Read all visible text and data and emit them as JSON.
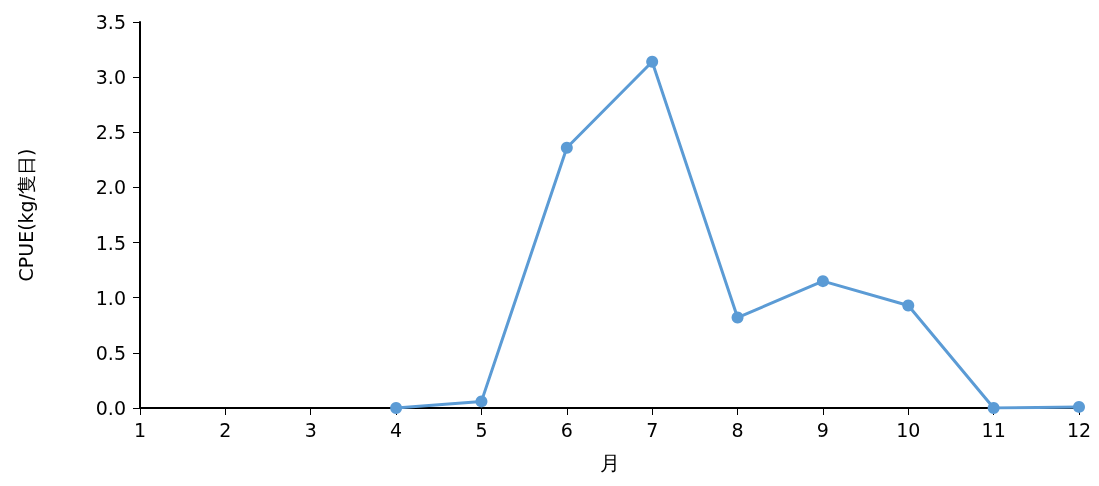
{
  "chart_data": {
    "type": "line",
    "xlabel": "月",
    "ylabel": "CPUE(kg/隻日)",
    "x": [
      4,
      5,
      6,
      7,
      8,
      9,
      10,
      11,
      12
    ],
    "series": [
      {
        "color": "#5b9bd5",
        "values": [
          0,
          0.06,
          2.36,
          3.14,
          0.82,
          1.15,
          0.93,
          0,
          0.01
        ]
      }
    ],
    "xlim": [
      1,
      12
    ],
    "xticks": [
      1,
      2,
      3,
      4,
      5,
      6,
      7,
      8,
      9,
      10,
      11,
      12
    ],
    "ylim": [
      0,
      3.5
    ],
    "yticks": [
      {
        "value": 0,
        "label": "0.0"
      },
      {
        "value": 0.5,
        "label": "0.5"
      },
      {
        "value": 1,
        "label": "1.0"
      },
      {
        "value": 1.5,
        "label": "1.5"
      },
      {
        "value": 2,
        "label": "2.0"
      },
      {
        "value": 2.5,
        "label": "2.5"
      },
      {
        "value": 3,
        "label": "3.0"
      },
      {
        "value": 3.5,
        "label": "3.5"
      }
    ],
    "grid": false,
    "marker": "circle",
    "line_style": "solid"
  }
}
